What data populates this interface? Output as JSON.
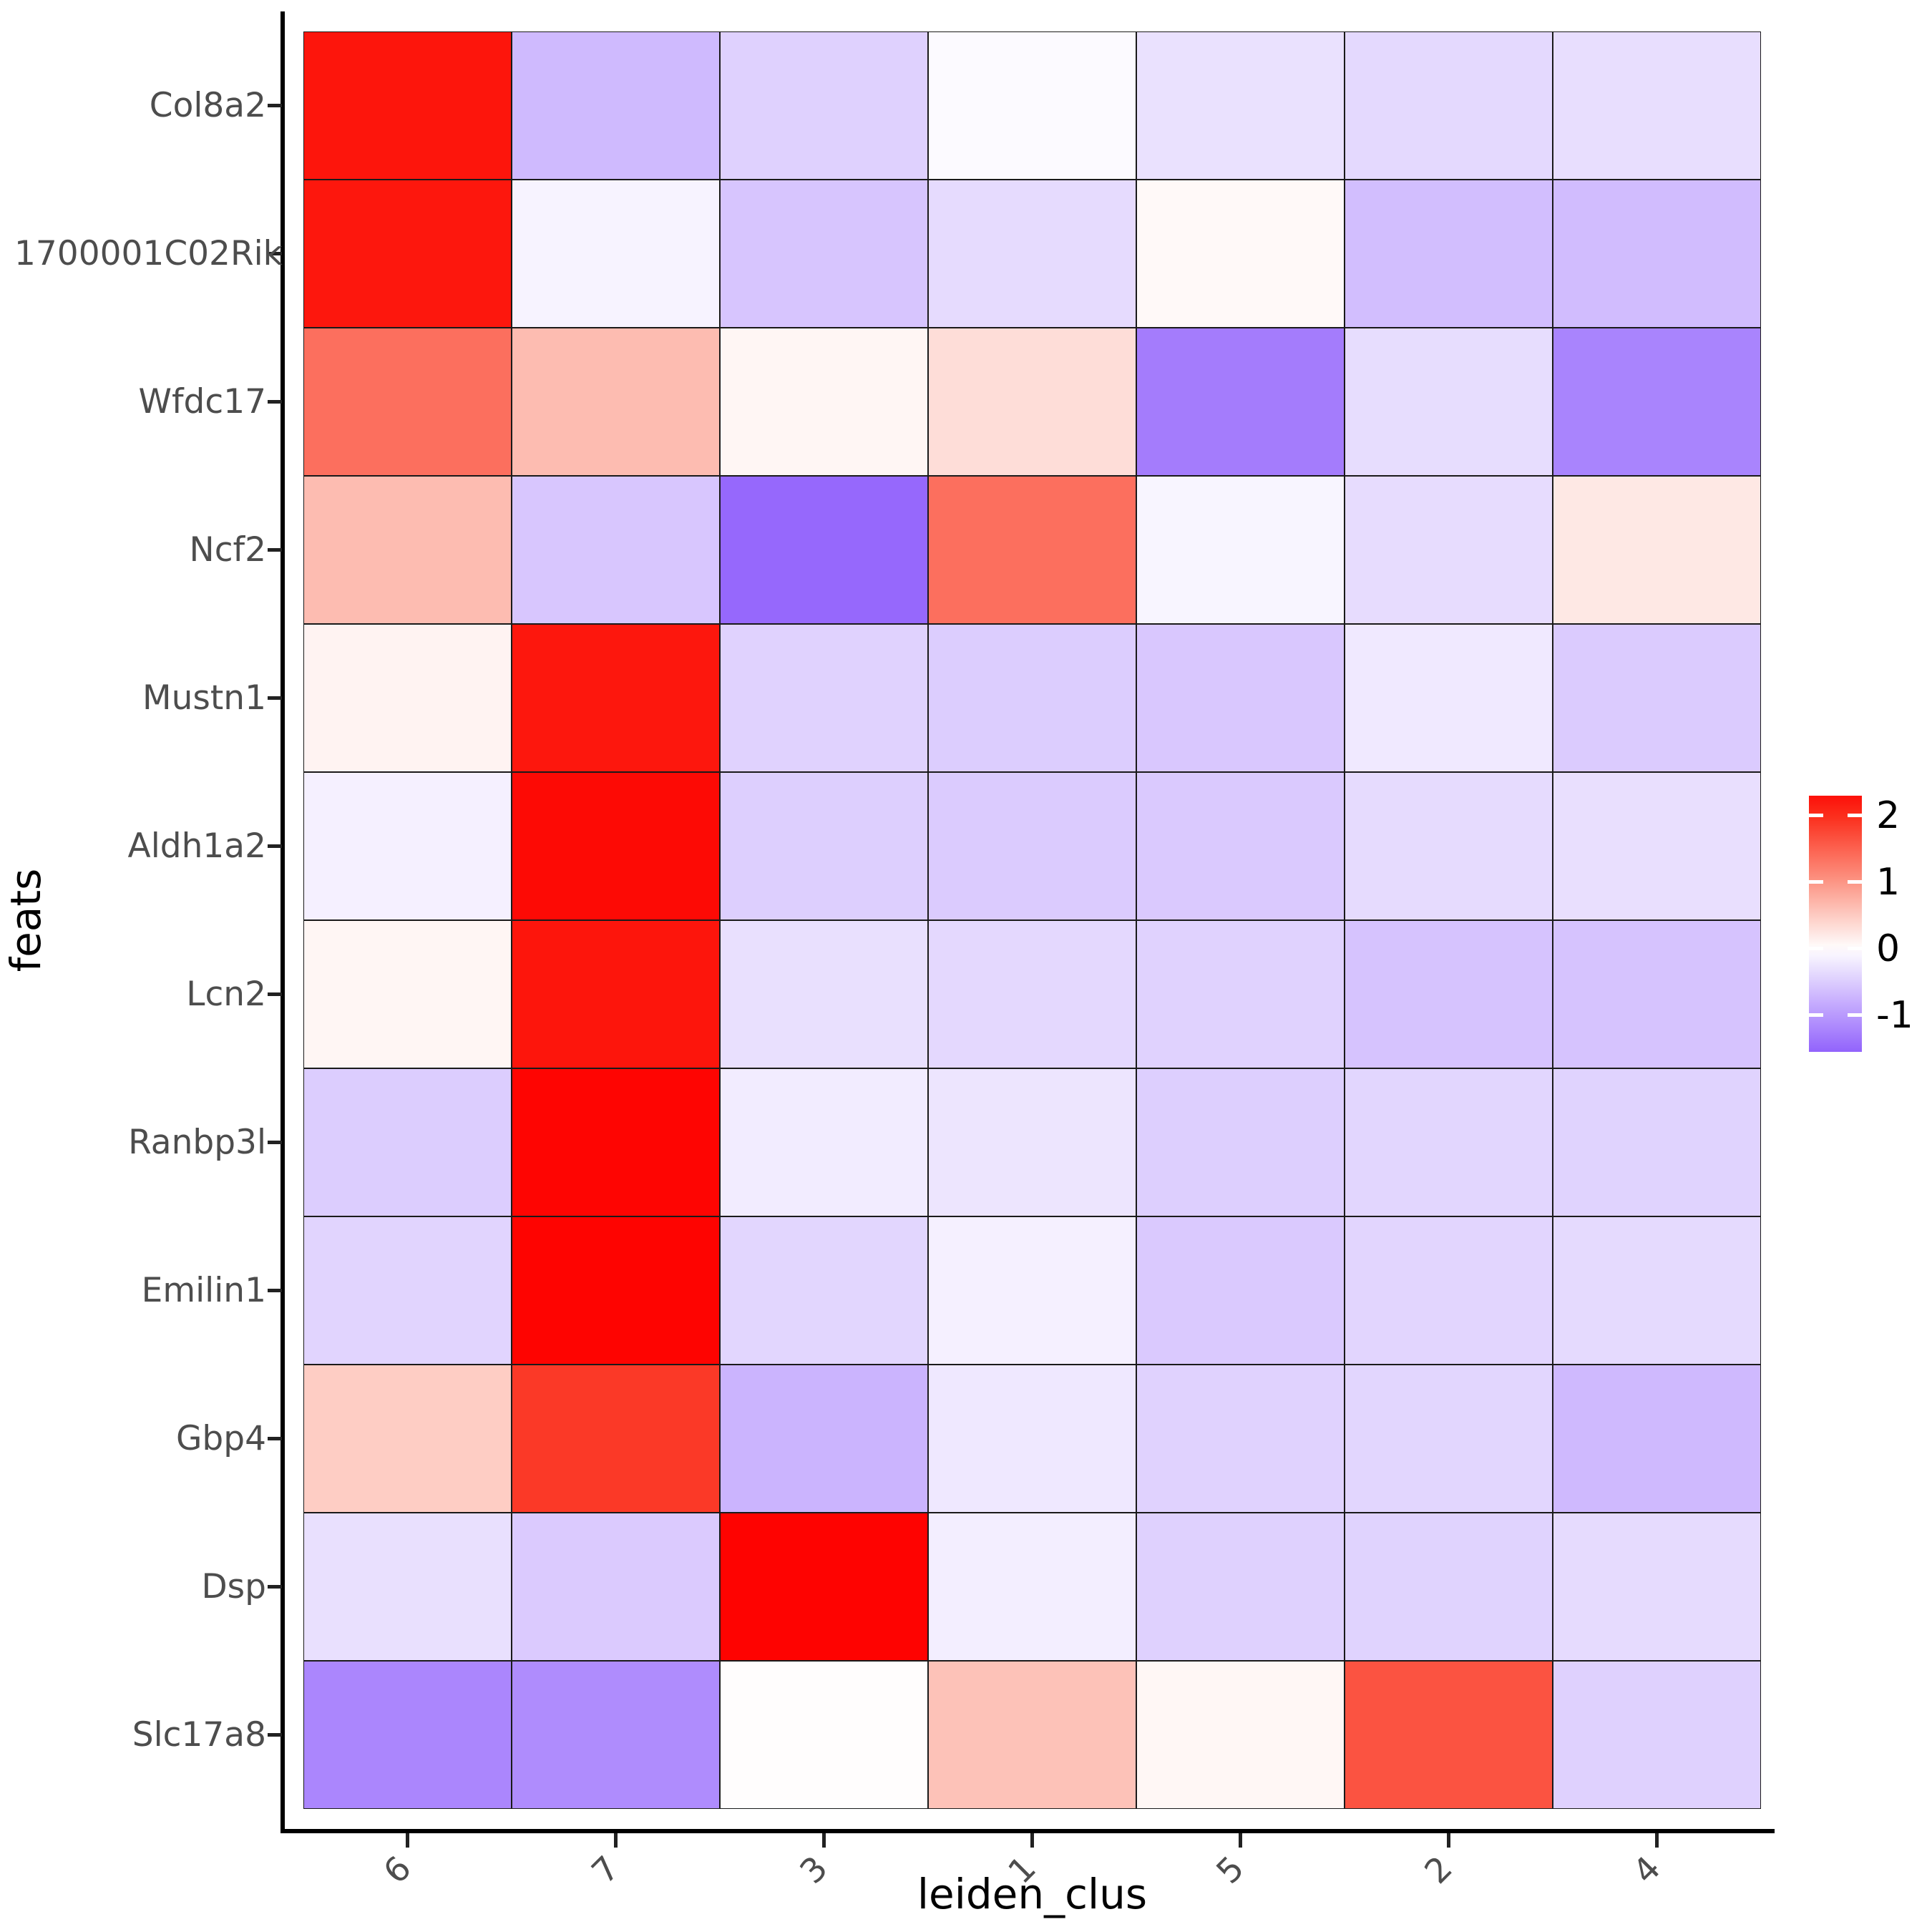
{
  "figure": {
    "x_title": "leiden_clus",
    "y_title": "feats",
    "background": "#ffffff"
  },
  "chart_data": {
    "type": "heatmap",
    "xlabel": "leiden_clus",
    "ylabel": "feats",
    "x_categories": [
      "6",
      "7",
      "3",
      "1",
      "5",
      "2",
      "4"
    ],
    "y_categories": [
      "Col8a2",
      "1700001C02Rik",
      "Wfdc17",
      "Ncf2",
      "Mustn1",
      "Aldh1a2",
      "Lcn2",
      "Ranbp3l",
      "Emilin1",
      "Gbp4",
      "Dsp",
      "Slc17a8"
    ],
    "series": [
      {
        "name": "Col8a2",
        "values": [
          2.25,
          -0.68,
          -0.46,
          -0.05,
          -0.3,
          -0.38,
          -0.33
        ]
      },
      {
        "name": "1700001C02Rik",
        "values": [
          2.23,
          -0.12,
          -0.57,
          -0.36,
          0.06,
          -0.64,
          -0.66
        ]
      },
      {
        "name": "Wfdc17",
        "values": [
          1.37,
          0.64,
          0.09,
          0.32,
          -1.3,
          -0.34,
          -1.22
        ]
      },
      {
        "name": "Ncf2",
        "values": [
          0.64,
          -0.56,
          -1.5,
          1.37,
          -0.1,
          -0.35,
          0.22
        ]
      },
      {
        "name": "Mustn1",
        "values": [
          0.11,
          2.23,
          -0.45,
          -0.5,
          -0.55,
          -0.22,
          -0.51
        ]
      },
      {
        "name": "Aldh1a2",
        "values": [
          -0.15,
          2.37,
          -0.48,
          -0.51,
          -0.53,
          -0.36,
          -0.32
        ]
      },
      {
        "name": "Lcn2",
        "values": [
          0.09,
          2.25,
          -0.31,
          -0.39,
          -0.45,
          -0.59,
          -0.59
        ]
      },
      {
        "name": "Ranbp3l",
        "values": [
          -0.5,
          2.42,
          -0.19,
          -0.26,
          -0.48,
          -0.41,
          -0.44
        ]
      },
      {
        "name": "Emilin1",
        "values": [
          -0.43,
          2.43,
          -0.41,
          -0.15,
          -0.53,
          -0.42,
          -0.37
        ]
      },
      {
        "name": "Gbp4",
        "values": [
          0.48,
          1.89,
          -0.74,
          -0.23,
          -0.45,
          -0.41,
          -0.69
        ]
      },
      {
        "name": "Dsp",
        "values": [
          -0.31,
          -0.52,
          2.44,
          -0.17,
          -0.46,
          -0.44,
          -0.36
        ]
      },
      {
        "name": "Slc17a8",
        "values": [
          -1.2,
          -1.14,
          0.02,
          0.58,
          0.08,
          1.64,
          -0.46
        ]
      }
    ],
    "grid": "off",
    "legend_position": "right",
    "colorbar": {
      "ticks": [
        "2",
        "1",
        "0",
        "-1"
      ],
      "tick_values": [
        2,
        1,
        0,
        -1
      ],
      "bar_domain": [
        -1.55,
        2.3
      ],
      "palette_stops": [
        {
          "v": -1.55,
          "c": "#9263FC"
        },
        {
          "v": -1.0,
          "c": "#B99AFD"
        },
        {
          "v": 0.0,
          "c": "#FFFFFF"
        },
        {
          "v": 1.0,
          "c": "#FC9685"
        },
        {
          "v": 2.0,
          "c": "#FB2D1B"
        },
        {
          "v": 2.45,
          "c": "#FE0200"
        }
      ]
    },
    "colors": {
      "cell_border": "#1a1a1a",
      "axis_line": "#000000",
      "tick_label": "#4d4d4d",
      "title": "#000000"
    }
  }
}
